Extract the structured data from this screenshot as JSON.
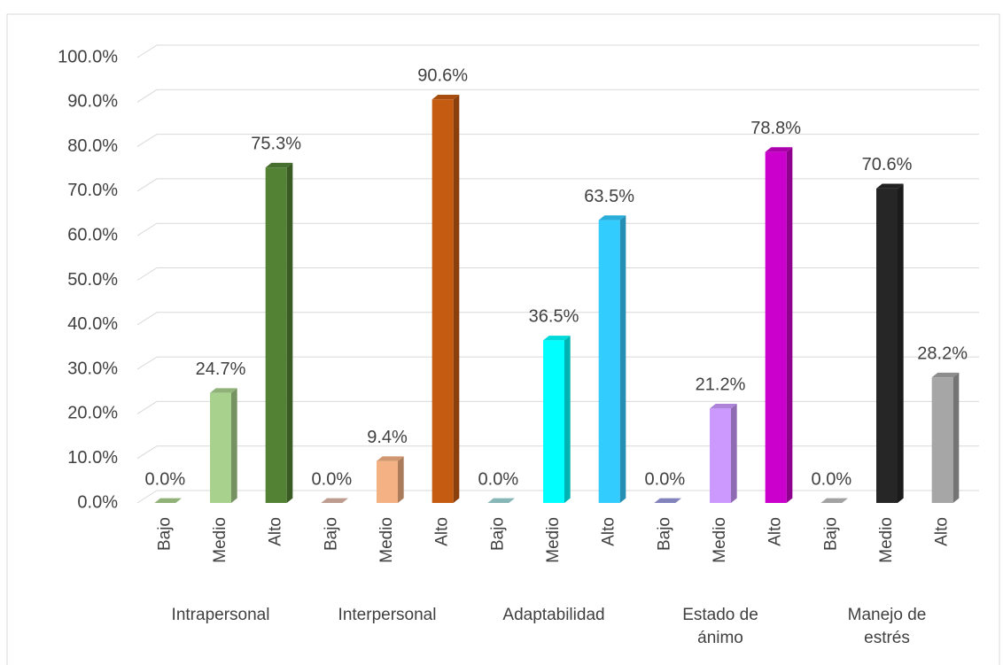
{
  "chart_data": {
    "type": "bar3d",
    "categories": [
      "Bajo",
      "Medio",
      "Alto",
      "Bajo",
      "Medio",
      "Alto",
      "Bajo",
      "Medio",
      "Alto",
      "Bajo",
      "Medio",
      "Alto",
      "Bajo",
      "Medio",
      "Alto"
    ],
    "groups": [
      "Intrapersonal",
      "Interpersonal",
      "Adaptabilidad",
      "Estado de ánimo",
      "Manejo de estrés"
    ],
    "values": [
      0,
      24.7,
      75.3,
      0,
      9.4,
      90.6,
      0,
      36.5,
      63.5,
      0,
      21.2,
      78.8,
      0,
      70.6,
      28.2
    ],
    "value_labels": [
      "0.0%",
      "24.7%",
      "75.3%",
      "0.0%",
      "9.4%",
      "90.6%",
      "0.0%",
      "36.5%",
      "63.5%",
      "0.0%",
      "21.2%",
      "78.8%",
      "0.0%",
      "70.6%",
      "28.2%"
    ],
    "colors": [
      "#a9d18e",
      "#a9d18e",
      "#548235",
      "#e0b8a8",
      "#f4b183",
      "#c55a11",
      "#9fd6d6",
      "#00ffff",
      "#33ccff",
      "#9999dd",
      "#cc99ff",
      "#cc00cc",
      "#bfbfbf",
      "#262626",
      "#a6a6a6"
    ],
    "ylim": [
      0,
      100
    ],
    "yticks": [
      {
        "value": 0,
        "label": "0.0%"
      },
      {
        "value": 10,
        "label": "10.0%"
      },
      {
        "value": 20,
        "label": "20.0%"
      },
      {
        "value": 30,
        "label": "30.0%"
      },
      {
        "value": 40,
        "label": "40.0%"
      },
      {
        "value": 50,
        "label": "50.0%"
      },
      {
        "value": 60,
        "label": "60.0%"
      },
      {
        "value": 70,
        "label": "70.0%"
      },
      {
        "value": 80,
        "label": "80.0%"
      },
      {
        "value": 90,
        "label": "90.0%"
      },
      {
        "value": 100,
        "label": "100.0%"
      }
    ],
    "grid": true
  }
}
